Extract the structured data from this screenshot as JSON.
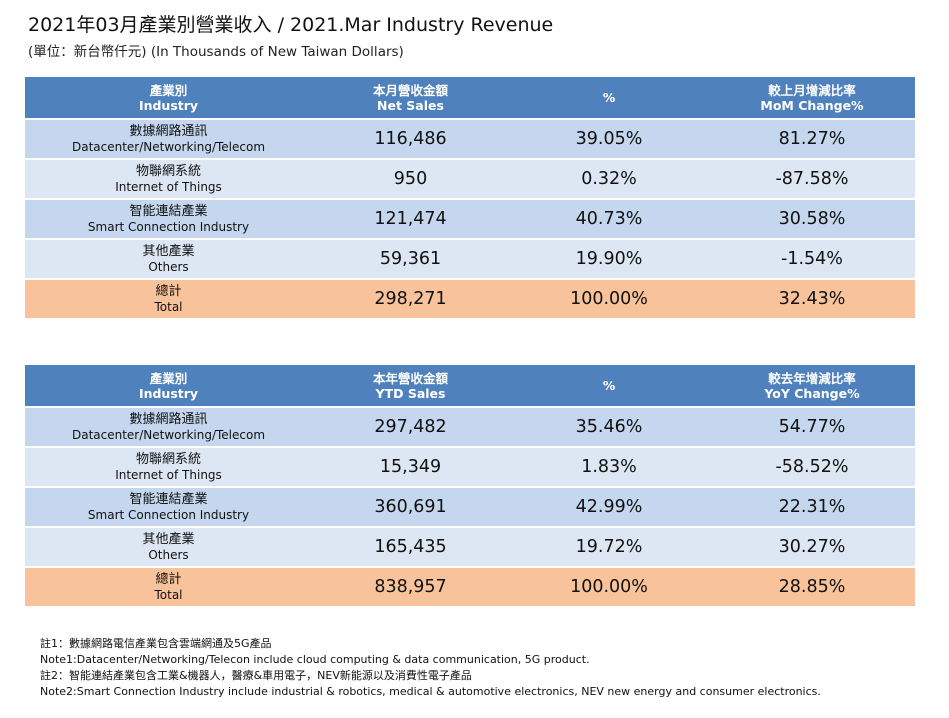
{
  "header": {
    "title": "2021年03月產業別營業收入 / 2021.Mar Industry Revenue",
    "subtitle": "(單位：新台幣仟元) (In Thousands of New Taiwan Dollars)"
  },
  "monthly": {
    "headers": {
      "industry_zh": "產業別",
      "industry_en": "Industry",
      "sales_zh": "本月營收金額",
      "sales_en": "Net Sales",
      "pct": "%",
      "change_zh": "較上月增減比率",
      "change_en": "MoM Change%"
    },
    "rows": [
      {
        "zh": "數據網路通訊",
        "en": "Datacenter/Networking/Telecom",
        "sales": "116,486",
        "pct": "39.05%",
        "change": "81.27%"
      },
      {
        "zh": "物聯網系統",
        "en": "Internet of Things",
        "sales": "950",
        "pct": "0.32%",
        "change": "-87.58%"
      },
      {
        "zh": "智能連結產業",
        "en": "Smart Connection Industry",
        "sales": "121,474",
        "pct": "40.73%",
        "change": "30.58%"
      },
      {
        "zh": "其他產業",
        "en": "Others",
        "sales": "59,361",
        "pct": "19.90%",
        "change": "-1.54%"
      }
    ],
    "total": {
      "zh": "總計",
      "en": "Total",
      "sales": "298,271",
      "pct": "100.00%",
      "change": "32.43%"
    }
  },
  "ytd": {
    "headers": {
      "industry_zh": "產業別",
      "industry_en": "Industry",
      "sales_zh": "本年營收金額",
      "sales_en": "YTD Sales",
      "pct": "%",
      "change_zh": "較去年增減比率",
      "change_en": "YoY Change%"
    },
    "rows": [
      {
        "zh": "數據網路通訊",
        "en": "Datacenter/Networking/Telecom",
        "sales": "297,482",
        "pct": "35.46%",
        "change": "54.77%"
      },
      {
        "zh": "物聯網系統",
        "en": "Internet of Things",
        "sales": "15,349",
        "pct": "1.83%",
        "change": "-58.52%"
      },
      {
        "zh": "智能連結產業",
        "en": "Smart Connection Industry",
        "sales": "360,691",
        "pct": "42.99%",
        "change": "22.31%"
      },
      {
        "zh": "其他產業",
        "en": "Others",
        "sales": "165,435",
        "pct": "19.72%",
        "change": "30.27%"
      }
    ],
    "total": {
      "zh": "總計",
      "en": "Total",
      "sales": "838,957",
      "pct": "100.00%",
      "change": "28.85%"
    }
  },
  "notes": [
    "註1：數據網路電信產業包含雲端網通及5G產品",
    "Note1:Datacenter/Networking/Telecon include cloud computing & data communication, 5G product.",
    "註2：智能連結產業包含工業&機器人，醫療&車用電子，NEV新能源以及消費性電子產品",
    "Note2:Smart Connection Industry include industrial & robotics, medical & automotive electronics, NEV new energy and consumer electronics."
  ],
  "colors": {
    "header_bg": "#4f81bd",
    "row_odd": "#c5d7ee",
    "row_even": "#dde7f3",
    "total_bg": "#f8c39b"
  }
}
